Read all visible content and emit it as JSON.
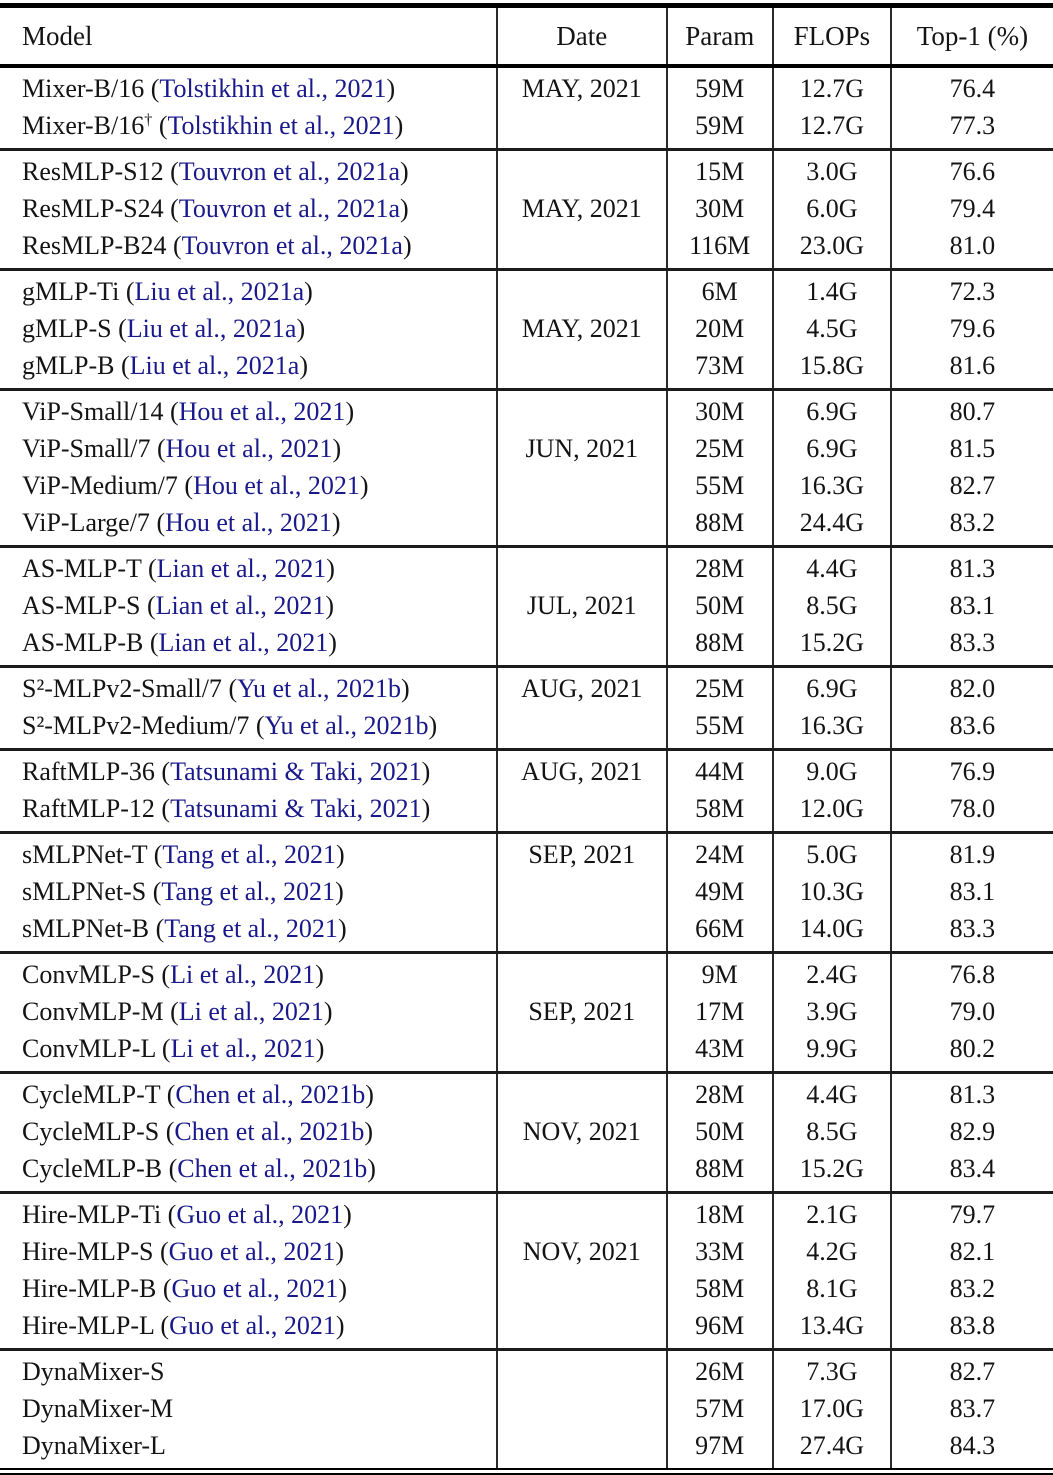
{
  "table": {
    "columns": [
      "Model",
      "Date",
      "Param",
      "FLOPs",
      "Top-1 (%)"
    ],
    "colors": {
      "citation_link": "#19198C",
      "text": "#141414",
      "rule": "#000000"
    },
    "groups": [
      {
        "rows": [
          {
            "name": "Mixer-B/16",
            "sup": "",
            "cite": "Tolstikhin et al., 2021",
            "date": "MAY, 2021",
            "param": "59M",
            "flops": "12.7G",
            "top1": "76.4"
          },
          {
            "name": "Mixer-B/16",
            "sup": "†",
            "cite": "Tolstikhin et al., 2021",
            "date": "",
            "param": "59M",
            "flops": "12.7G",
            "top1": "77.3"
          }
        ]
      },
      {
        "rows": [
          {
            "name": "ResMLP-S12",
            "sup": "",
            "cite": "Touvron et al., 2021a",
            "date": "",
            "param": "15M",
            "flops": "3.0G",
            "top1": "76.6"
          },
          {
            "name": "ResMLP-S24",
            "sup": "",
            "cite": "Touvron et al., 2021a",
            "date": "MAY, 2021",
            "param": "30M",
            "flops": "6.0G",
            "top1": "79.4"
          },
          {
            "name": "ResMLP-B24",
            "sup": "",
            "cite": "Touvron et al., 2021a",
            "date": "",
            "param": "116M",
            "flops": "23.0G",
            "top1": "81.0"
          }
        ]
      },
      {
        "rows": [
          {
            "name": "gMLP-Ti",
            "sup": "",
            "cite": "Liu et al., 2021a",
            "date": "",
            "param": "6M",
            "flops": "1.4G",
            "top1": "72.3"
          },
          {
            "name": "gMLP-S",
            "sup": "",
            "cite": "Liu et al., 2021a",
            "date": "MAY, 2021",
            "param": "20M",
            "flops": "4.5G",
            "top1": "79.6"
          },
          {
            "name": "gMLP-B",
            "sup": "",
            "cite": "Liu et al., 2021a",
            "date": "",
            "param": "73M",
            "flops": "15.8G",
            "top1": "81.6"
          }
        ]
      },
      {
        "rows": [
          {
            "name": "ViP-Small/14",
            "sup": "",
            "cite": "Hou et al., 2021",
            "date": "",
            "param": "30M",
            "flops": "6.9G",
            "top1": "80.7"
          },
          {
            "name": "ViP-Small/7",
            "sup": "",
            "cite": "Hou et al., 2021",
            "date": "JUN, 2021",
            "param": "25M",
            "flops": "6.9G",
            "top1": "81.5"
          },
          {
            "name": "ViP-Medium/7",
            "sup": "",
            "cite": "Hou et al., 2021",
            "date": "",
            "param": "55M",
            "flops": "16.3G",
            "top1": "82.7"
          },
          {
            "name": "ViP-Large/7",
            "sup": "",
            "cite": "Hou et al., 2021",
            "date": "",
            "param": "88M",
            "flops": "24.4G",
            "top1": "83.2"
          }
        ]
      },
      {
        "rows": [
          {
            "name": "AS-MLP-T",
            "sup": "",
            "cite": "Lian et al., 2021",
            "date": "",
            "param": "28M",
            "flops": "4.4G",
            "top1": "81.3"
          },
          {
            "name": "AS-MLP-S",
            "sup": "",
            "cite": "Lian et al., 2021",
            "date": "JUL, 2021",
            "param": "50M",
            "flops": "8.5G",
            "top1": "83.1"
          },
          {
            "name": "AS-MLP-B",
            "sup": "",
            "cite": "Lian et al., 2021",
            "date": "",
            "param": "88M",
            "flops": "15.2G",
            "top1": "83.3"
          }
        ]
      },
      {
        "rows": [
          {
            "name": "S²-MLPv2-Small/7",
            "sup": "",
            "cite": "Yu et al., 2021b",
            "date": "AUG, 2021",
            "param": "25M",
            "flops": "6.9G",
            "top1": "82.0"
          },
          {
            "name": "S²-MLPv2-Medium/7",
            "sup": "",
            "cite": "Yu et al., 2021b",
            "date": "",
            "param": "55M",
            "flops": "16.3G",
            "top1": "83.6"
          }
        ]
      },
      {
        "rows": [
          {
            "name": "RaftMLP-36",
            "sup": "",
            "cite": "Tatsunami & Taki, 2021",
            "date": "AUG, 2021",
            "param": "44M",
            "flops": "9.0G",
            "top1": "76.9"
          },
          {
            "name": "RaftMLP-12",
            "sup": "",
            "cite": "Tatsunami & Taki, 2021",
            "date": "",
            "param": "58M",
            "flops": "12.0G",
            "top1": "78.0"
          }
        ]
      },
      {
        "rows": [
          {
            "name": "sMLPNet-T",
            "sup": "",
            "cite": "Tang et al., 2021",
            "date": "SEP, 2021",
            "param": "24M",
            "flops": "5.0G",
            "top1": "81.9"
          },
          {
            "name": "sMLPNet-S",
            "sup": "",
            "cite": "Tang et al., 2021",
            "date": "",
            "param": "49M",
            "flops": "10.3G",
            "top1": "83.1"
          },
          {
            "name": "sMLPNet-B",
            "sup": "",
            "cite": "Tang et al., 2021",
            "date": "",
            "param": "66M",
            "flops": "14.0G",
            "top1": "83.3"
          }
        ]
      },
      {
        "rows": [
          {
            "name": "ConvMLP-S",
            "sup": "",
            "cite": "Li et al., 2021",
            "date": "",
            "param": "9M",
            "flops": "2.4G",
            "top1": "76.8"
          },
          {
            "name": "ConvMLP-M",
            "sup": "",
            "cite": "Li et al., 2021",
            "date": "SEP, 2021",
            "param": "17M",
            "flops": "3.9G",
            "top1": "79.0"
          },
          {
            "name": "ConvMLP-L",
            "sup": "",
            "cite": "Li et al., 2021",
            "date": "",
            "param": "43M",
            "flops": "9.9G",
            "top1": "80.2"
          }
        ]
      },
      {
        "rows": [
          {
            "name": "CycleMLP-T",
            "sup": "",
            "cite": "Chen et al., 2021b",
            "date": "",
            "param": "28M",
            "flops": "4.4G",
            "top1": "81.3"
          },
          {
            "name": "CycleMLP-S",
            "sup": "",
            "cite": "Chen et al., 2021b",
            "date": "NOV, 2021",
            "param": "50M",
            "flops": "8.5G",
            "top1": "82.9"
          },
          {
            "name": "CycleMLP-B",
            "sup": "",
            "cite": "Chen et al., 2021b",
            "date": "",
            "param": "88M",
            "flops": "15.2G",
            "top1": "83.4"
          }
        ]
      },
      {
        "rows": [
          {
            "name": "Hire-MLP-Ti",
            "sup": "",
            "cite": "Guo et al., 2021",
            "date": "",
            "param": "18M",
            "flops": "2.1G",
            "top1": "79.7"
          },
          {
            "name": "Hire-MLP-S",
            "sup": "",
            "cite": "Guo et al., 2021",
            "date": "NOV, 2021",
            "param": "33M",
            "flops": "4.2G",
            "top1": "82.1"
          },
          {
            "name": "Hire-MLP-B",
            "sup": "",
            "cite": "Guo et al., 2021",
            "date": "",
            "param": "58M",
            "flops": "8.1G",
            "top1": "83.2"
          },
          {
            "name": "Hire-MLP-L",
            "sup": "",
            "cite": "Guo et al., 2021",
            "date": "",
            "param": "96M",
            "flops": "13.4G",
            "top1": "83.8"
          }
        ]
      },
      {
        "rows": [
          {
            "name": "DynaMixer-S",
            "sup": "",
            "cite": "",
            "date": "",
            "param": "26M",
            "flops": "7.3G",
            "top1": "82.7"
          },
          {
            "name": "DynaMixer-M",
            "sup": "",
            "cite": "",
            "date": "",
            "param": "57M",
            "flops": "17.0G",
            "top1": "83.7"
          },
          {
            "name": "DynaMixer-L",
            "sup": "",
            "cite": "",
            "date": "",
            "param": "97M",
            "flops": "27.4G",
            "top1": "84.3"
          }
        ]
      }
    ]
  }
}
